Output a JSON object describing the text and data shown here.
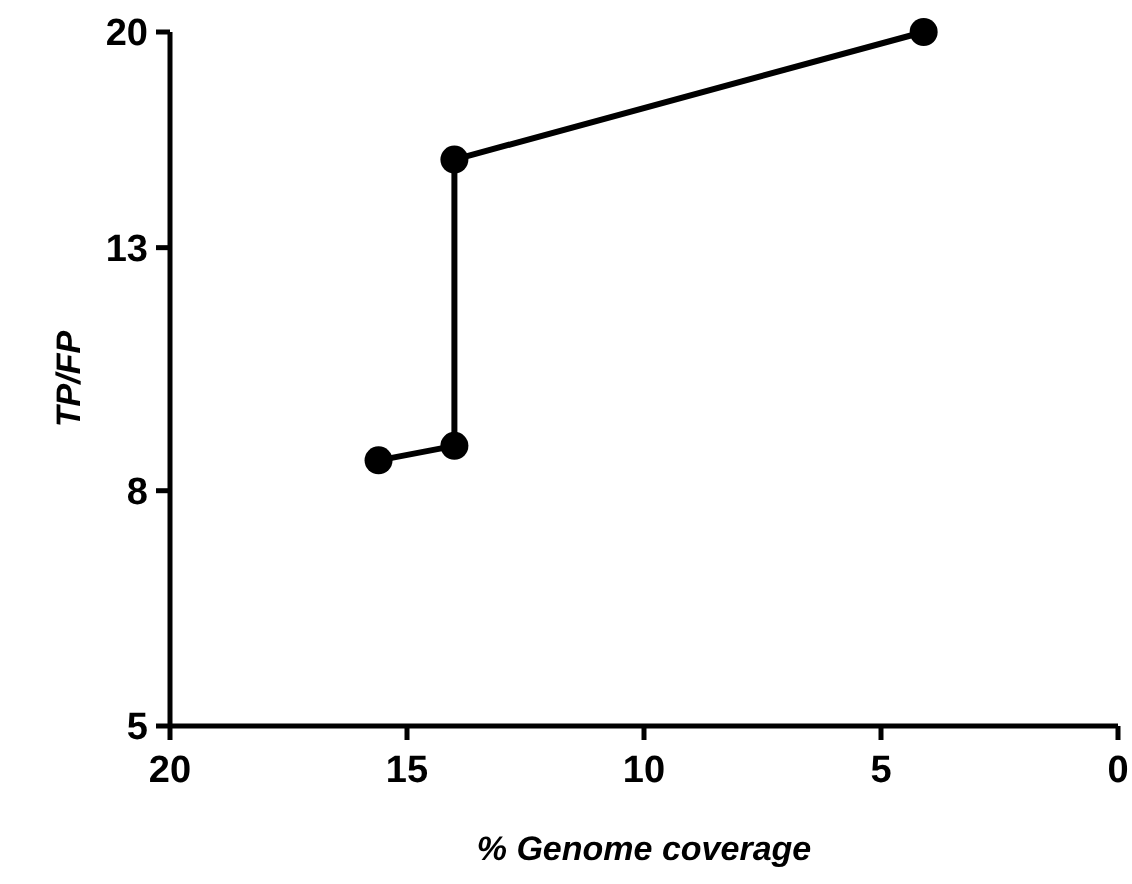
{
  "chart_data": {
    "type": "line",
    "xlabel": "% Genome coverage",
    "ylabel": "TP/FP",
    "x": [
      15.6,
      14,
      14,
      4.1
    ],
    "series": [
      {
        "color": "#000000",
        "values": [
          8.5,
          8.75,
          15.5,
          20
        ]
      }
    ],
    "xlim": [
      20,
      0
    ],
    "xticks": [
      20,
      15,
      10,
      5,
      0
    ],
    "ylim": [
      5,
      20
    ],
    "yticks": [
      5,
      8,
      13,
      20
    ],
    "log": "y",
    "marker": "circle",
    "line_style": "solid",
    "grid": false
  }
}
